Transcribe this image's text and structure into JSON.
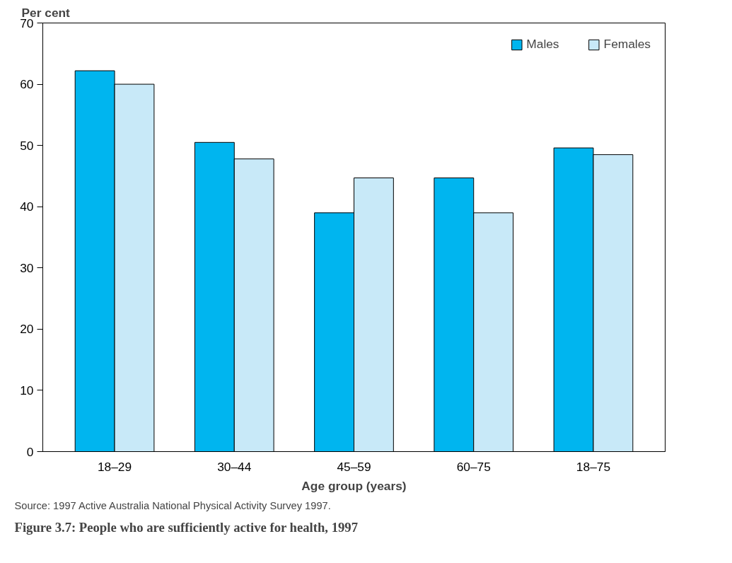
{
  "chart_data": {
    "type": "bar",
    "title": "Figure 3.7: People who are sufficiently active for health, 1997",
    "xlabel": "Age group (years)",
    "ylabel": "Per cent",
    "categories": [
      "18–29",
      "30–44",
      "45–59",
      "60–75",
      "18–75"
    ],
    "series": [
      {
        "name": "Males",
        "color": "#00b5ef",
        "values": [
          62.2,
          50.5,
          39.0,
          44.7,
          49.6
        ]
      },
      {
        "name": "Females",
        "color": "#c8e9f8",
        "values": [
          60.0,
          47.8,
          44.7,
          39.0,
          48.5
        ]
      }
    ],
    "ylim": [
      0,
      70
    ],
    "yticks": [
      0,
      10,
      20,
      30,
      40,
      50,
      60,
      70
    ],
    "grid": false,
    "legend": "top right",
    "annotations": [
      "Source: 1997 Active Australia National Physical Activity Survey 1997."
    ]
  }
}
